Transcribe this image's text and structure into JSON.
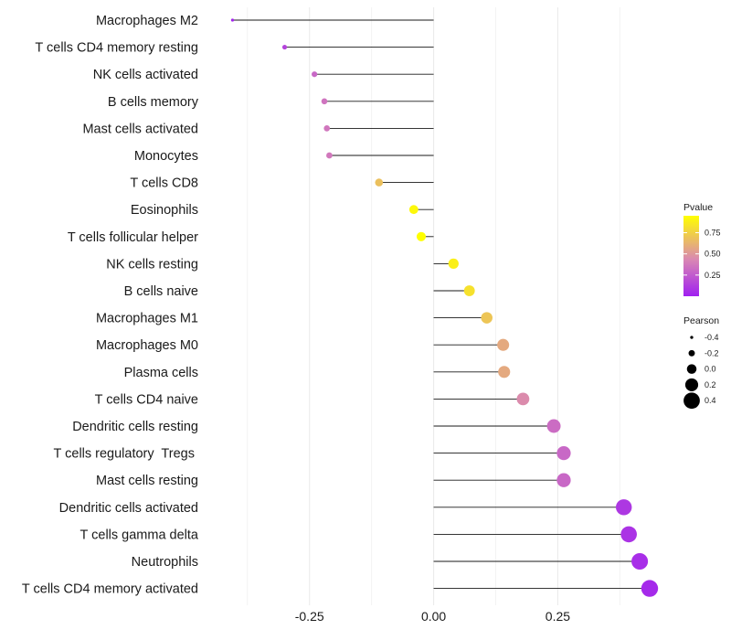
{
  "chart_data": {
    "type": "lollipop",
    "title": "",
    "xlabel": "",
    "ylabel": "",
    "xlim": [
      -0.45,
      0.47
    ],
    "xticks": [
      -0.25,
      0.0,
      0.25
    ],
    "xtick_labels": [
      "-0.25",
      "0.00",
      "0.25"
    ],
    "grid": true,
    "categories": [
      "Macrophages M2",
      "T cells CD4 memory resting",
      "NK cells activated",
      "B cells memory",
      "Mast cells activated",
      "Monocytes",
      "T cells CD8",
      "Eosinophils",
      "T cells follicular helper",
      "NK cells resting",
      "B cells naive",
      "Macrophages M1",
      "Macrophages M0",
      "Plasma cells",
      "T cells CD4 naive",
      "Dendritic cells resting",
      "T cells regulatory  Tregs ",
      "Mast cells resting",
      "Dendritic cells activated",
      "T cells gamma delta",
      "Neutrophils",
      "T cells CD4 memory activated"
    ],
    "pearson": [
      -0.405,
      -0.3,
      -0.24,
      -0.22,
      -0.215,
      -0.21,
      -0.11,
      -0.04,
      -0.025,
      0.04,
      0.072,
      0.107,
      0.14,
      0.142,
      0.18,
      0.242,
      0.262,
      0.262,
      0.383,
      0.393,
      0.415,
      0.435
    ],
    "pvalue": [
      0.02,
      0.15,
      0.3,
      0.35,
      0.36,
      0.37,
      0.68,
      0.92,
      0.95,
      0.88,
      0.82,
      0.7,
      0.58,
      0.58,
      0.45,
      0.32,
      0.3,
      0.3,
      0.1,
      0.08,
      0.06,
      0.04
    ],
    "legend_color": {
      "title": "Pvalue",
      "ticks": [
        0.25,
        0.5,
        0.75
      ],
      "tick_labels": [
        "0.25",
        "0.50",
        "0.75"
      ],
      "range": [
        0.0,
        0.95
      ],
      "low_color": "#a020f0",
      "mid_color": "#d986b4",
      "high_color": "#ffff00",
      "placement": "right"
    },
    "legend_size": {
      "title": "Pearson",
      "values": [
        -0.4,
        -0.2,
        0.0,
        0.2,
        0.4
      ],
      "labels": [
        "-0.4",
        "-0.2",
        "0.0",
        "0.2",
        "0.4"
      ],
      "placement": "right"
    }
  }
}
